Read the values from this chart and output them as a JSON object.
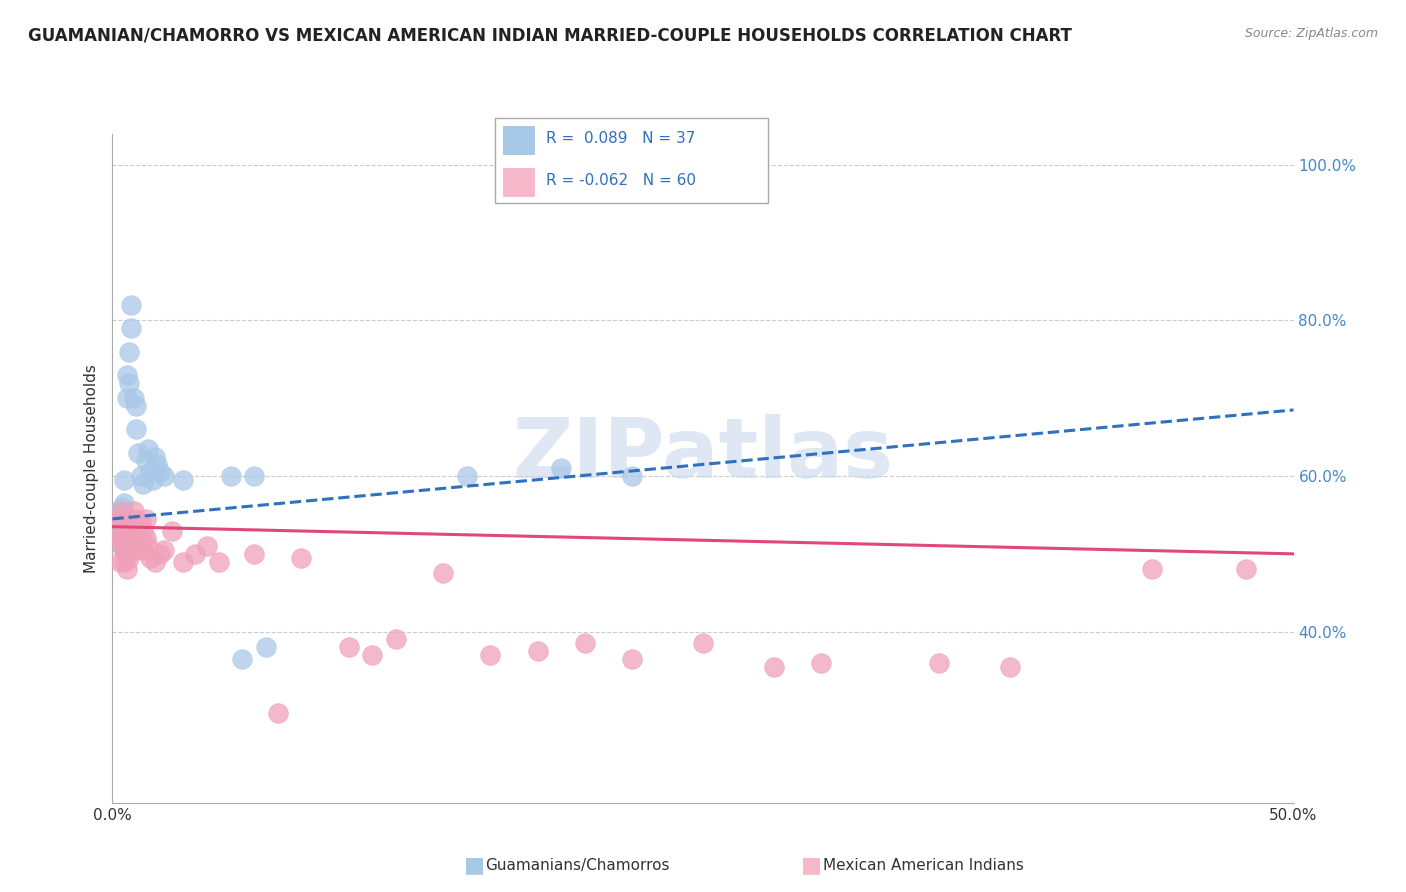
{
  "title": "GUAMANIAN/CHAMORRO VS MEXICAN AMERICAN INDIAN MARRIED-COUPLE HOUSEHOLDS CORRELATION CHART",
  "source": "Source: ZipAtlas.com",
  "ylabel": "Married-couple Households",
  "y_tick_labels": [
    "40.0%",
    "60.0%",
    "80.0%",
    "100.0%"
  ],
  "y_tick_values": [
    0.4,
    0.6,
    0.8,
    1.0
  ],
  "x_min": 0.0,
  "x_max": 0.5,
  "y_min": 0.18,
  "y_max": 1.04,
  "blue_color": "#a8c8e8",
  "pink_color": "#f0a0b8",
  "blue_line_color": "#3070c0",
  "pink_line_color": "#e04878",
  "blue_legend_color": "#a8c8e8",
  "pink_legend_color": "#f5b8c8",
  "legend_text_color": "#3070c0",
  "legend_label1": "R =  0.089   N = 37",
  "legend_label2": "R = -0.062   N = 60",
  "bottom_label1": "Guamanians/Chamorros",
  "bottom_label2": "Mexican American Indians",
  "watermark": "ZIPatlas",
  "blue_dots": [
    [
      0.003,
      0.535
    ],
    [
      0.003,
      0.555
    ],
    [
      0.004,
      0.525
    ],
    [
      0.004,
      0.51
    ],
    [
      0.004,
      0.56
    ],
    [
      0.004,
      0.545
    ],
    [
      0.005,
      0.595
    ],
    [
      0.005,
      0.565
    ],
    [
      0.005,
      0.505
    ],
    [
      0.006,
      0.7
    ],
    [
      0.006,
      0.73
    ],
    [
      0.007,
      0.76
    ],
    [
      0.007,
      0.72
    ],
    [
      0.008,
      0.82
    ],
    [
      0.008,
      0.79
    ],
    [
      0.009,
      0.7
    ],
    [
      0.01,
      0.69
    ],
    [
      0.01,
      0.66
    ],
    [
      0.011,
      0.63
    ],
    [
      0.012,
      0.6
    ],
    [
      0.013,
      0.59
    ],
    [
      0.014,
      0.62
    ],
    [
      0.015,
      0.635
    ],
    [
      0.016,
      0.605
    ],
    [
      0.017,
      0.595
    ],
    [
      0.018,
      0.625
    ],
    [
      0.019,
      0.615
    ],
    [
      0.02,
      0.605
    ],
    [
      0.022,
      0.6
    ],
    [
      0.03,
      0.595
    ],
    [
      0.05,
      0.6
    ],
    [
      0.06,
      0.6
    ],
    [
      0.055,
      0.365
    ],
    [
      0.065,
      0.38
    ],
    [
      0.15,
      0.6
    ],
    [
      0.19,
      0.61
    ],
    [
      0.22,
      0.6
    ]
  ],
  "pink_dots": [
    [
      0.002,
      0.545
    ],
    [
      0.003,
      0.54
    ],
    [
      0.003,
      0.52
    ],
    [
      0.003,
      0.49
    ],
    [
      0.004,
      0.555
    ],
    [
      0.004,
      0.525
    ],
    [
      0.004,
      0.51
    ],
    [
      0.005,
      0.54
    ],
    [
      0.005,
      0.525
    ],
    [
      0.005,
      0.505
    ],
    [
      0.005,
      0.49
    ],
    [
      0.006,
      0.52
    ],
    [
      0.006,
      0.5
    ],
    [
      0.006,
      0.48
    ],
    [
      0.007,
      0.535
    ],
    [
      0.007,
      0.515
    ],
    [
      0.007,
      0.495
    ],
    [
      0.008,
      0.53
    ],
    [
      0.008,
      0.515
    ],
    [
      0.009,
      0.555
    ],
    [
      0.009,
      0.545
    ],
    [
      0.01,
      0.535
    ],
    [
      0.01,
      0.52
    ],
    [
      0.01,
      0.505
    ],
    [
      0.011,
      0.54
    ],
    [
      0.011,
      0.52
    ],
    [
      0.012,
      0.54
    ],
    [
      0.012,
      0.51
    ],
    [
      0.013,
      0.53
    ],
    [
      0.013,
      0.505
    ],
    [
      0.014,
      0.545
    ],
    [
      0.014,
      0.52
    ],
    [
      0.015,
      0.51
    ],
    [
      0.016,
      0.495
    ],
    [
      0.018,
      0.49
    ],
    [
      0.02,
      0.5
    ],
    [
      0.022,
      0.505
    ],
    [
      0.025,
      0.53
    ],
    [
      0.03,
      0.49
    ],
    [
      0.035,
      0.5
    ],
    [
      0.04,
      0.51
    ],
    [
      0.045,
      0.49
    ],
    [
      0.06,
      0.5
    ],
    [
      0.07,
      0.295
    ],
    [
      0.08,
      0.495
    ],
    [
      0.1,
      0.38
    ],
    [
      0.11,
      0.37
    ],
    [
      0.12,
      0.39
    ],
    [
      0.14,
      0.475
    ],
    [
      0.16,
      0.37
    ],
    [
      0.18,
      0.375
    ],
    [
      0.2,
      0.385
    ],
    [
      0.22,
      0.365
    ],
    [
      0.25,
      0.385
    ],
    [
      0.28,
      0.355
    ],
    [
      0.3,
      0.36
    ],
    [
      0.35,
      0.36
    ],
    [
      0.38,
      0.355
    ],
    [
      0.44,
      0.48
    ],
    [
      0.48,
      0.48
    ]
  ]
}
